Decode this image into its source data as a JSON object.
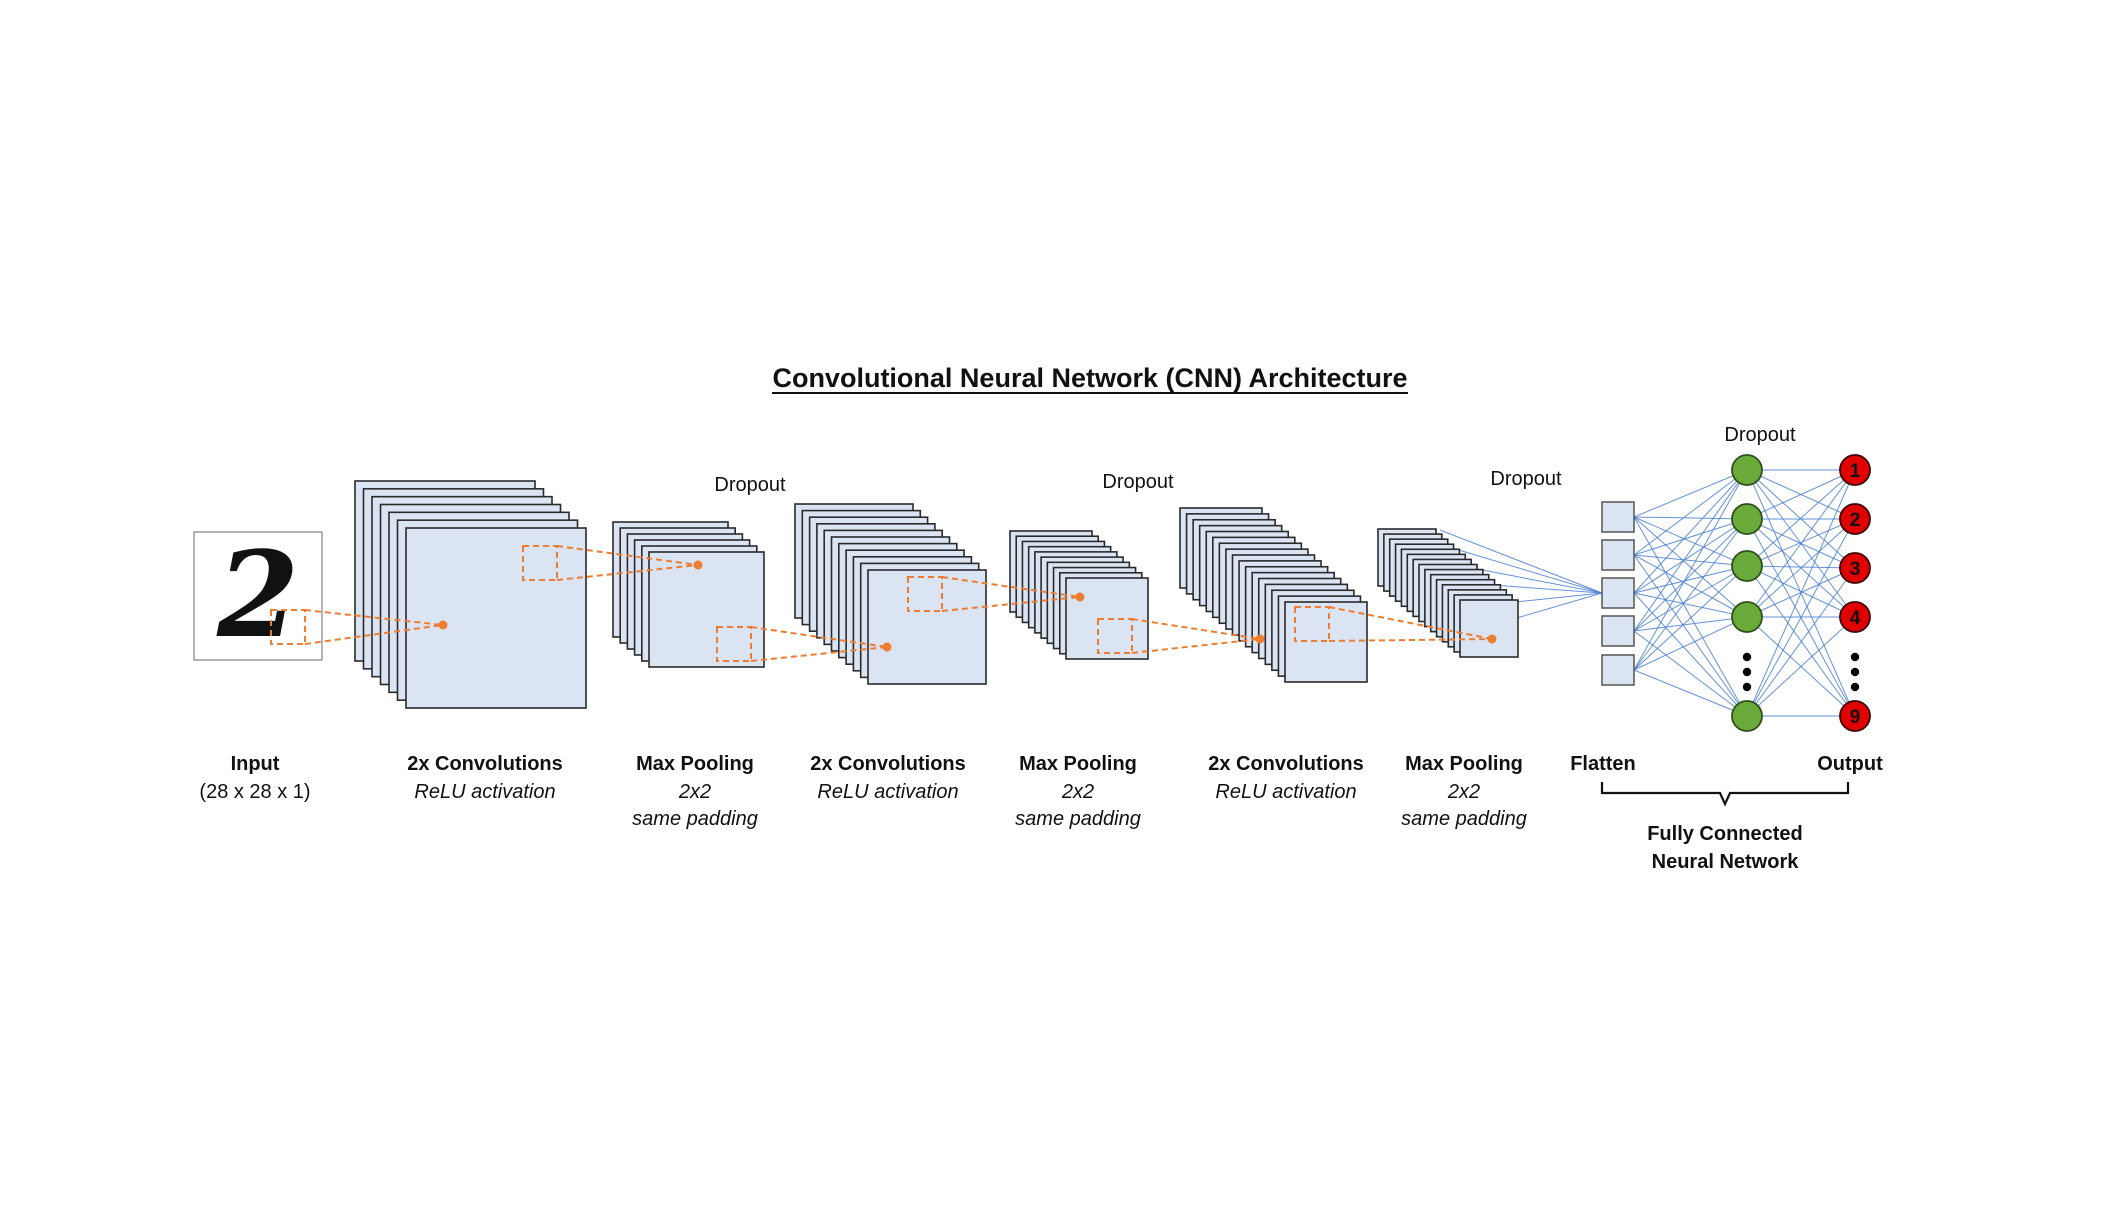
{
  "title": "Convolutional Neural Network (CNN) Architecture",
  "input_glyph": "2",
  "dropout_label": "Dropout",
  "stages": [
    {
      "name": "Input",
      "detail": [
        "(28 x 28 x 1)"
      ],
      "detail_style": "plain"
    },
    {
      "name": "2x Convolutions",
      "detail": [
        "ReLU activation"
      ],
      "detail_style": "italic"
    },
    {
      "name": "Max Pooling",
      "detail": [
        "2x2",
        "same padding"
      ],
      "detail_style": "italic"
    },
    {
      "name": "2x Convolutions",
      "detail": [
        "ReLU activation"
      ],
      "detail_style": "italic"
    },
    {
      "name": "Max Pooling",
      "detail": [
        "2x2",
        "same padding"
      ],
      "detail_style": "italic"
    },
    {
      "name": "2x Convolutions",
      "detail": [
        "ReLU activation"
      ],
      "detail_style": "italic"
    },
    {
      "name": "Max Pooling",
      "detail": [
        "2x2",
        "same padding"
      ],
      "detail_style": "italic"
    },
    {
      "name": "Flatten",
      "detail": [],
      "detail_style": "plain"
    },
    {
      "name": "Output",
      "detail": [],
      "detail_style": "plain"
    }
  ],
  "fc_label": [
    "Fully Connected",
    "Neural Network"
  ],
  "output_nodes": [
    "1",
    "2",
    "3",
    "4",
    "9"
  ],
  "colors": {
    "feature_map_fill": "#dbe4f3",
    "feature_map_stroke": "#2a2a2a",
    "kernel_line": "#ed7d31",
    "connection_line": "#4a7fd0",
    "hidden_node": "#6aaa3a",
    "output_node": "#e00000",
    "flatten_fill": "#dbe4f3"
  }
}
